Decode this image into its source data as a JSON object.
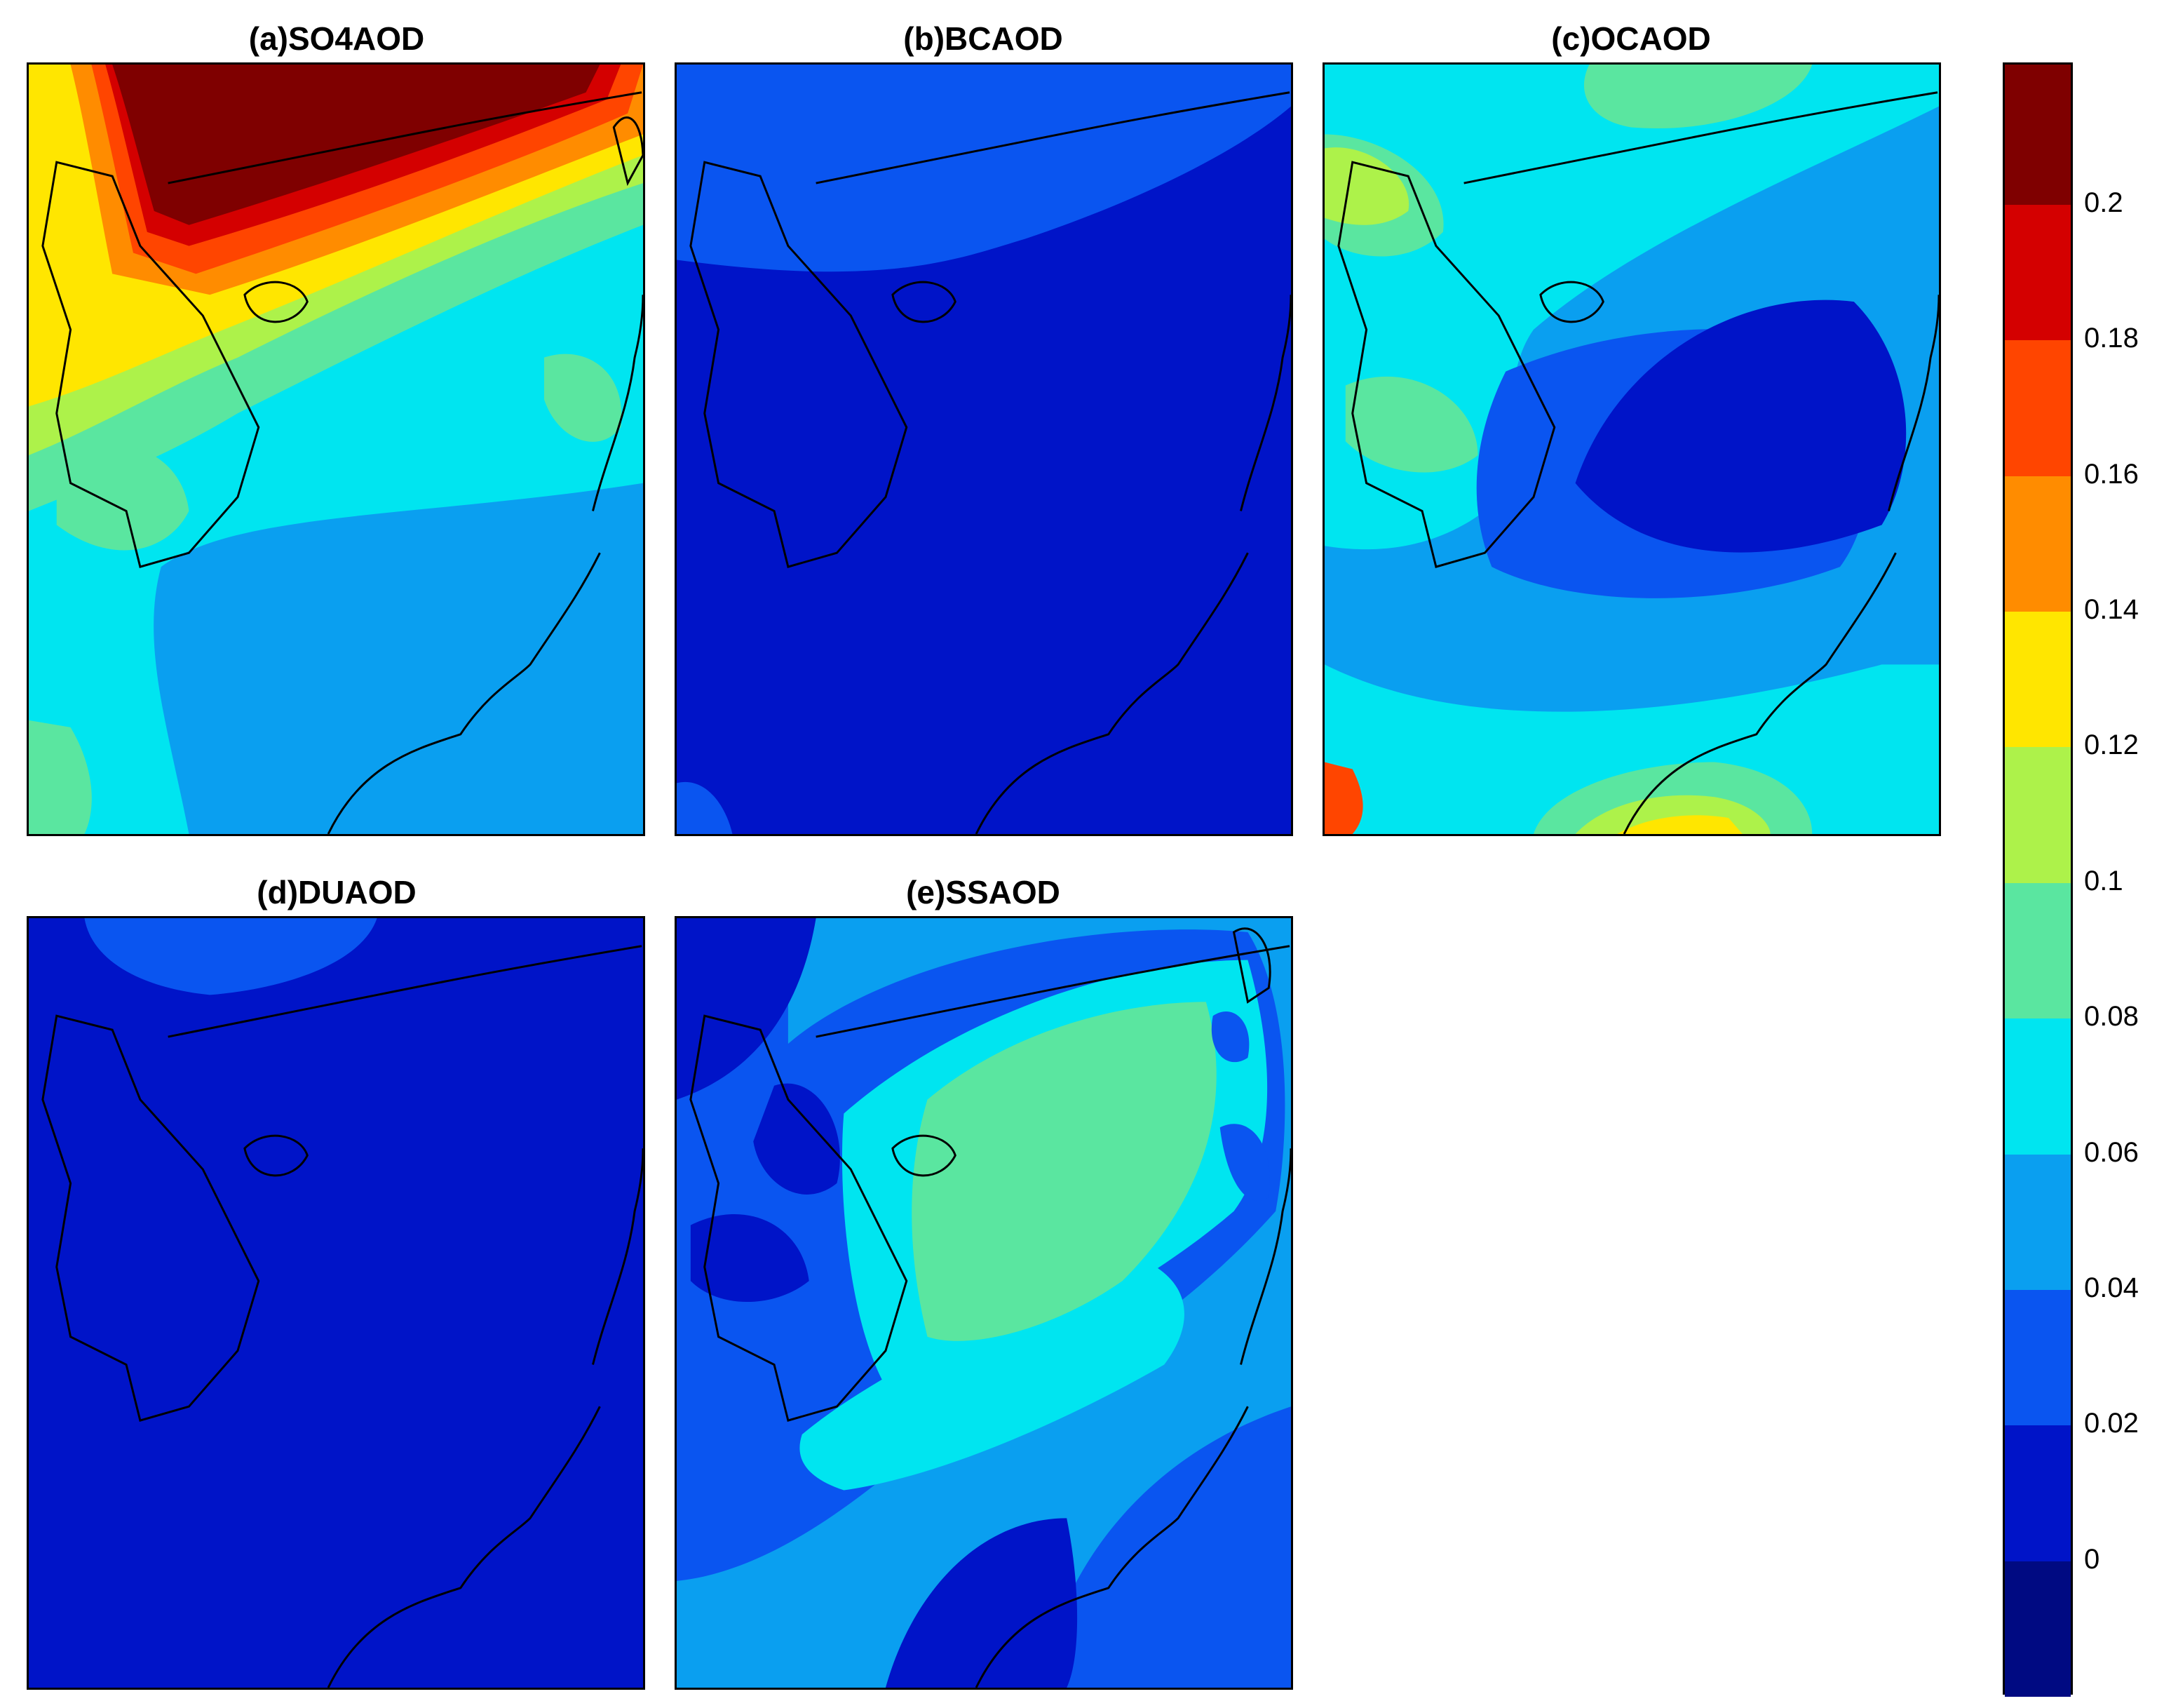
{
  "figure": {
    "panels": [
      {
        "id": "a",
        "title": "(a)SO4AOD"
      },
      {
        "id": "b",
        "title": "(b)BCAOD"
      },
      {
        "id": "c",
        "title": "(c)OCAOD"
      },
      {
        "id": "d",
        "title": "(d)DUAOD"
      },
      {
        "id": "e",
        "title": "(e)SSAOD"
      }
    ]
  },
  "colorbar": {
    "levels": [
      {
        "label": "0.2",
        "color": "#7f0000"
      },
      {
        "label": "0.18",
        "color": "#d40000"
      },
      {
        "label": "0.16",
        "color": "#ff4500"
      },
      {
        "label": "0.14",
        "color": "#ff8c00"
      },
      {
        "label": "0.12",
        "color": "#ffe600"
      },
      {
        "label": "0.1",
        "color": "#adf24a"
      },
      {
        "label": "0.08",
        "color": "#5ae6a0"
      },
      {
        "label": "0.06",
        "color": "#00e5f0"
      },
      {
        "label": "0.04",
        "color": "#0a9ff0"
      },
      {
        "label": "0.02",
        "color": "#0a55f0"
      },
      {
        "label": "0",
        "color": "#0014c8"
      },
      {
        "label": "",
        "color": "#000a82"
      }
    ]
  },
  "colors": {
    "c0": "#0014c8",
    "c1": "#0a55f0",
    "c2": "#0a9ff0",
    "c3": "#00e5f0",
    "c4": "#5ae6a0",
    "c5": "#adf24a",
    "c6": "#ffe600",
    "c7": "#ff8c00",
    "c8": "#ff4500",
    "c9": "#d40000",
    "c10": "#7f0000"
  }
}
